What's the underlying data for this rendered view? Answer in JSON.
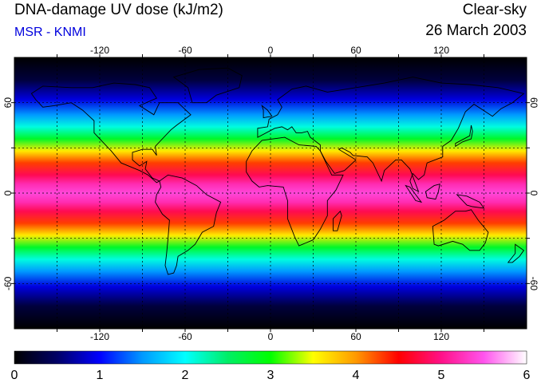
{
  "header": {
    "title": "DNA-damage UV dose (kJ/m2)",
    "subtitle": "MSR - KNMI",
    "condition": "Clear-sky",
    "date": "26 March 2003"
  },
  "map": {
    "lon_range": [
      -180,
      180
    ],
    "lat_range": [
      -90,
      90
    ],
    "lon_ticks": [
      -120,
      -60,
      0,
      60,
      120
    ],
    "lon_tick_labels": [
      "-120",
      "-60",
      "0",
      "60",
      "120"
    ],
    "lat_ticks": [
      60,
      0,
      -60
    ],
    "lat_tick_labels": [
      "60",
      "0",
      "-60"
    ],
    "gridlines": true,
    "coastlines": true
  },
  "colorbar": {
    "min": 0,
    "max": 6,
    "labels": [
      "0",
      "1",
      "2",
      "3",
      "4",
      "5",
      "6"
    ],
    "stops": [
      {
        "v": 0.0,
        "c": "#000000"
      },
      {
        "v": 0.5,
        "c": "#000066"
      },
      {
        "v": 1.0,
        "c": "#0000ff"
      },
      {
        "v": 1.5,
        "c": "#0099ff"
      },
      {
        "v": 2.0,
        "c": "#00ffff"
      },
      {
        "v": 2.5,
        "c": "#00ee66"
      },
      {
        "v": 3.0,
        "c": "#00ff00"
      },
      {
        "v": 3.5,
        "c": "#ffff00"
      },
      {
        "v": 4.0,
        "c": "#ff9900"
      },
      {
        "v": 4.5,
        "c": "#ff0000"
      },
      {
        "v": 5.0,
        "c": "#ff1188"
      },
      {
        "v": 5.5,
        "c": "#ff55ee"
      },
      {
        "v": 6.0,
        "c": "#ffffff"
      }
    ]
  },
  "field": {
    "lat_profile": [
      {
        "lat": 90,
        "v": 0
      },
      {
        "lat": 75,
        "v": 0.3
      },
      {
        "lat": 62,
        "v": 0.9
      },
      {
        "lat": 52,
        "v": 1.5
      },
      {
        "lat": 44,
        "v": 2.1
      },
      {
        "lat": 36,
        "v": 2.8
      },
      {
        "lat": 28,
        "v": 3.6
      },
      {
        "lat": 20,
        "v": 4.3
      },
      {
        "lat": 12,
        "v": 4.8
      },
      {
        "lat": 6,
        "v": 5.2
      },
      {
        "lat": 0,
        "v": 5.4
      },
      {
        "lat": -6,
        "v": 5.2
      },
      {
        "lat": -12,
        "v": 4.8
      },
      {
        "lat": -20,
        "v": 4.3
      },
      {
        "lat": -28,
        "v": 3.6
      },
      {
        "lat": -36,
        "v": 2.8
      },
      {
        "lat": -44,
        "v": 2.1
      },
      {
        "lat": -52,
        "v": 1.5
      },
      {
        "lat": -62,
        "v": 0.9
      },
      {
        "lat": -75,
        "v": 0.3
      },
      {
        "lat": -90,
        "v": 0
      }
    ]
  },
  "colors": {
    "grid": "#000000",
    "frame": "#000000",
    "subtitle": "#0000dd",
    "coast": "#000000"
  }
}
